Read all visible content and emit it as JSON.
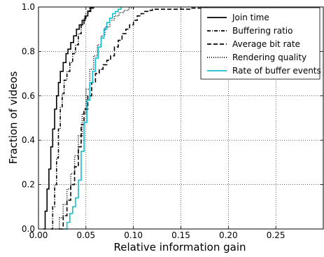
{
  "chart_data": {
    "type": "line",
    "title": "",
    "xlabel": "Relative information gain",
    "ylabel": "Fraction of videos",
    "xlim": [
      0,
      0.3
    ],
    "ylim": [
      0,
      1
    ],
    "x_ticks": [
      0.0,
      0.05,
      0.1,
      0.15,
      0.2,
      0.25
    ],
    "x_tick_labels": [
      "0.00",
      "0.05",
      "0.10",
      "0.15",
      "0.20",
      "0.25"
    ],
    "y_ticks": [
      0.0,
      0.2,
      0.4,
      0.6,
      0.8,
      1.0
    ],
    "y_tick_labels": [
      "0.0",
      "0.2",
      "0.4",
      "0.6",
      "0.8",
      "1.0"
    ],
    "grid": true,
    "legend_position": "top-right",
    "series": [
      {
        "name": "Join time",
        "color": "#000000",
        "style": "solid",
        "x": [
          0.005,
          0.007,
          0.009,
          0.011,
          0.013,
          0.015,
          0.017,
          0.019,
          0.021,
          0.023,
          0.026,
          0.029,
          0.031,
          0.034,
          0.037,
          0.04,
          0.043,
          0.046,
          0.049,
          0.052,
          0.055,
          0.058
        ],
        "values": [
          0.0,
          0.08,
          0.18,
          0.27,
          0.37,
          0.45,
          0.54,
          0.6,
          0.66,
          0.71,
          0.75,
          0.79,
          0.81,
          0.84,
          0.87,
          0.9,
          0.92,
          0.94,
          0.96,
          0.98,
          0.995,
          1.0
        ]
      },
      {
        "name": "Buffering ratio",
        "color": "#000000",
        "style": "dashdot",
        "x": [
          0.013,
          0.015,
          0.017,
          0.019,
          0.021,
          0.023,
          0.025,
          0.027,
          0.03,
          0.033,
          0.036,
          0.039,
          0.042,
          0.045,
          0.048,
          0.05,
          0.052,
          0.054,
          0.056
        ],
        "values": [
          0.0,
          0.1,
          0.2,
          0.32,
          0.45,
          0.55,
          0.61,
          0.67,
          0.71,
          0.75,
          0.79,
          0.83,
          0.88,
          0.92,
          0.95,
          0.97,
          0.985,
          0.995,
          1.0
        ]
      },
      {
        "name": "Average bit rate",
        "color": "#000000",
        "style": "dashed",
        "x": [
          0.022,
          0.026,
          0.03,
          0.034,
          0.038,
          0.042,
          0.045,
          0.048,
          0.052,
          0.056,
          0.06,
          0.064,
          0.068,
          0.072,
          0.076,
          0.08,
          0.084,
          0.088,
          0.092,
          0.096,
          0.1,
          0.104,
          0.108,
          0.112,
          0.116,
          0.12,
          0.13,
          0.14,
          0.15,
          0.16,
          0.17,
          0.178
        ],
        "values": [
          0.0,
          0.06,
          0.13,
          0.2,
          0.28,
          0.37,
          0.47,
          0.54,
          0.6,
          0.66,
          0.7,
          0.72,
          0.74,
          0.76,
          0.78,
          0.82,
          0.85,
          0.88,
          0.9,
          0.92,
          0.94,
          0.96,
          0.97,
          0.98,
          0.985,
          0.99,
          0.99,
          0.99,
          0.99,
          0.995,
          0.995,
          1.0
        ]
      },
      {
        "name": "Rendering quality",
        "color": "#000000",
        "style": "dotted",
        "x": [
          0.018,
          0.022,
          0.026,
          0.03,
          0.034,
          0.038,
          0.042,
          0.046,
          0.05,
          0.054,
          0.058,
          0.062,
          0.066,
          0.07,
          0.075,
          0.08,
          0.085,
          0.09,
          0.095,
          0.1
        ],
        "values": [
          0.0,
          0.05,
          0.11,
          0.18,
          0.25,
          0.33,
          0.42,
          0.52,
          0.63,
          0.72,
          0.78,
          0.83,
          0.87,
          0.91,
          0.94,
          0.96,
          0.975,
          0.985,
          0.995,
          1.0
        ]
      },
      {
        "name": "Rate of buffer events",
        "color": "#17becf",
        "style": "solid",
        "x": [
          0.027,
          0.03,
          0.033,
          0.036,
          0.039,
          0.042,
          0.045,
          0.048,
          0.051,
          0.054,
          0.057,
          0.06,
          0.063,
          0.066,
          0.069,
          0.072,
          0.075,
          0.078,
          0.081,
          0.084,
          0.087
        ],
        "values": [
          0.0,
          0.03,
          0.07,
          0.1,
          0.14,
          0.22,
          0.35,
          0.48,
          0.58,
          0.66,
          0.71,
          0.77,
          0.82,
          0.86,
          0.9,
          0.93,
          0.95,
          0.97,
          0.98,
          0.99,
          1.0
        ]
      }
    ]
  }
}
